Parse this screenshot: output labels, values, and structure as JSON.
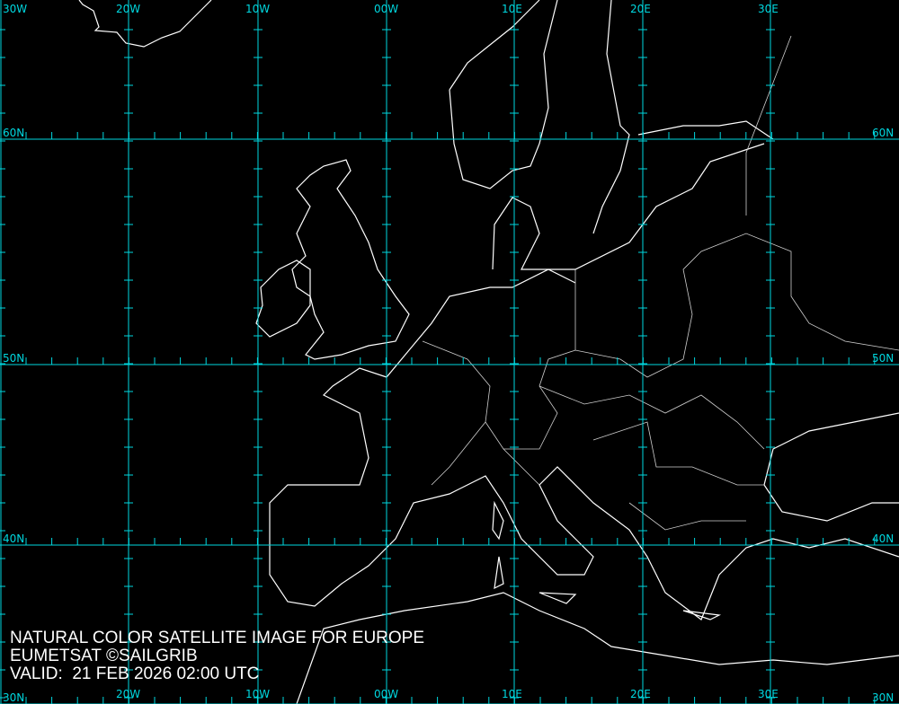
{
  "caption": {
    "title": "NATURAL COLOR SATELLITE IMAGE FOR EUROPE",
    "credit": "EUMETSAT ©SAILGRIB",
    "valid": "VALID:  21 FEB 2026 02:00 UTC"
  },
  "grid": {
    "longitude_labels": [
      "30W",
      "20W",
      "10W",
      "00W",
      "10E",
      "20E",
      "30E"
    ],
    "latitude_labels": [
      "60N",
      "50N",
      "40N",
      "30N"
    ]
  },
  "colors": {
    "background": "#000000",
    "grid": "#00d8e0",
    "coastline": "#ffffff",
    "borders": "#cfcfcf"
  }
}
